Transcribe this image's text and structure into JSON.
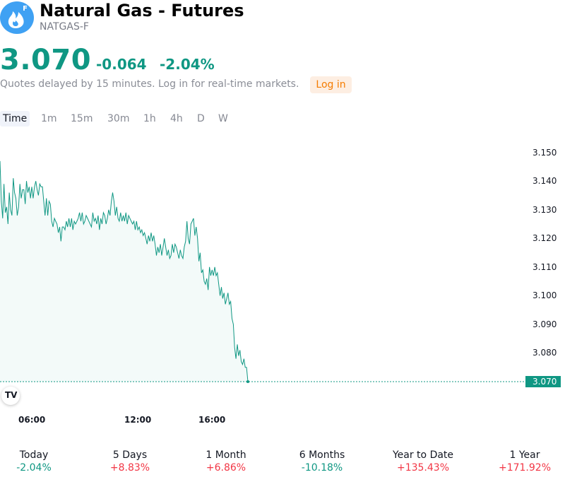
{
  "header": {
    "title": "Natural Gas - Futures",
    "ticker": "NATGAS-F",
    "logo_badge": "F",
    "logo_icon": "flame-icon",
    "logo_color": "#3fa1f3"
  },
  "quote": {
    "price": "3.070",
    "change": "-0.064",
    "change_pct": "-2.04%",
    "delay_notice": "Quotes delayed by 15 minutes. Log in for real-time markets.",
    "login_label": "Log in",
    "color_down": "#0f9783",
    "color_up": "#f23645"
  },
  "tabs": [
    {
      "label": "Time",
      "active": true
    },
    {
      "label": "1m"
    },
    {
      "label": "15m"
    },
    {
      "label": "30m"
    },
    {
      "label": "1h"
    },
    {
      "label": "4h"
    },
    {
      "label": "D"
    },
    {
      "label": "W"
    }
  ],
  "chart_data": {
    "type": "area",
    "y_ticks": [
      "3.150",
      "3.140",
      "3.130",
      "3.120",
      "3.110",
      "3.100",
      "3.090",
      "3.080"
    ],
    "x_ticks": [
      "06:00",
      "12:00",
      "16:00"
    ],
    "last_price_label": "3.070",
    "ylim": [
      3.07,
      3.151
    ],
    "line_color": "#0f9783",
    "values": [
      3.147,
      3.133,
      3.127,
      3.139,
      3.129,
      3.131,
      3.125,
      3.136,
      3.13,
      3.128,
      3.141,
      3.136,
      3.134,
      3.128,
      3.131,
      3.139,
      3.134,
      3.137,
      3.137,
      3.132,
      3.14,
      3.136,
      3.138,
      3.134,
      3.138,
      3.134,
      3.138,
      3.14,
      3.137,
      3.135,
      3.139,
      3.138,
      3.138,
      3.133,
      3.128,
      3.134,
      3.128,
      3.133,
      3.132,
      3.126,
      3.124,
      3.127,
      3.126,
      3.125,
      3.122,
      3.124,
      3.119,
      3.124,
      3.124,
      3.123,
      3.126,
      3.124,
      3.127,
      3.124,
      3.127,
      3.123,
      3.126,
      3.125,
      3.126,
      3.127,
      3.129,
      3.126,
      3.129,
      3.125,
      3.126,
      3.128,
      3.127,
      3.126,
      3.125,
      3.124,
      3.129,
      3.126,
      3.127,
      3.125,
      3.128,
      3.123,
      3.127,
      3.125,
      3.129,
      3.128,
      3.125,
      3.127,
      3.13,
      3.128,
      3.133,
      3.136,
      3.133,
      3.128,
      3.131,
      3.127,
      3.126,
      3.129,
      3.126,
      3.128,
      3.126,
      3.129,
      3.125,
      3.128,
      3.127,
      3.126,
      3.125,
      3.126,
      3.123,
      3.126,
      3.123,
      3.124,
      3.122,
      3.123,
      3.121,
      3.122,
      3.12,
      3.118,
      3.121,
      3.119,
      3.122,
      3.119,
      3.121,
      3.118,
      3.114,
      3.117,
      3.115,
      3.118,
      3.114,
      3.117,
      3.12,
      3.117,
      3.114,
      3.116,
      3.113,
      3.114,
      3.118,
      3.115,
      3.118,
      3.117,
      3.115,
      3.113,
      3.116,
      3.114,
      3.113,
      3.117,
      3.119,
      3.126,
      3.12,
      3.118,
      3.125,
      3.126,
      3.127,
      3.121,
      3.124,
      3.12,
      3.112,
      3.115,
      3.108,
      3.109,
      3.105,
      3.104,
      3.106,
      3.102,
      3.11,
      3.107,
      3.109,
      3.107,
      3.11,
      3.107,
      3.108,
      3.104,
      3.1,
      3.103,
      3.099,
      3.101,
      3.097,
      3.099,
      3.101,
      3.097,
      3.098,
      3.092,
      3.09,
      3.082,
      3.078,
      3.083,
      3.079,
      3.081,
      3.077,
      3.076,
      3.078,
      3.075,
      3.075,
      3.07
    ]
  },
  "performance": [
    {
      "label": "Today",
      "value": "-2.04%",
      "direction": "down"
    },
    {
      "label": "5 Days",
      "value": "+8.83%",
      "direction": "up"
    },
    {
      "label": "1 Month",
      "value": "+6.86%",
      "direction": "up"
    },
    {
      "label": "6 Months",
      "value": "-10.18%",
      "direction": "down"
    },
    {
      "label": "Year to Date",
      "value": "+135.43%",
      "direction": "up"
    },
    {
      "label": "1 Year",
      "value": "+171.92%",
      "direction": "up"
    }
  ]
}
